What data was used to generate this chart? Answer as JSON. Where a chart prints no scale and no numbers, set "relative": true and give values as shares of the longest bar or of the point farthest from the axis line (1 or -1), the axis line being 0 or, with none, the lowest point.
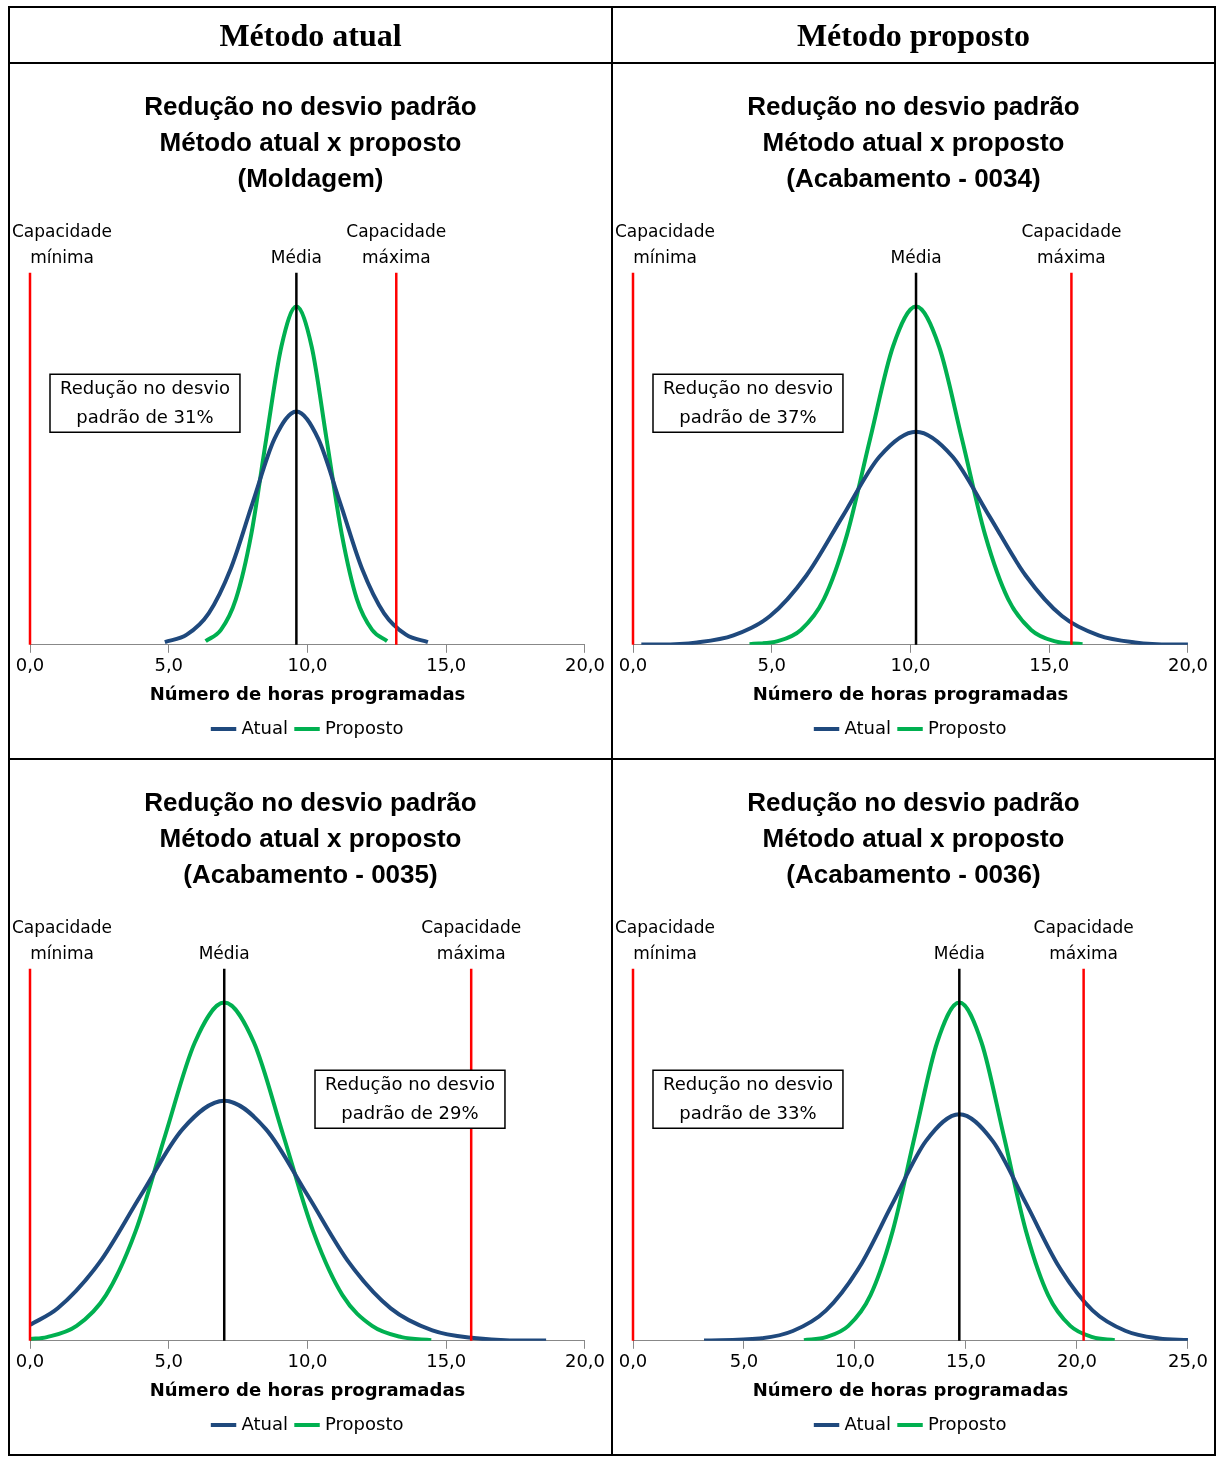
{
  "chart_data": [
    {
      "type": "other",
      "title": "Método atual"
    },
    {
      "type": "other",
      "title": "Método proposto"
    },
    {
      "type": "line",
      "title": "Redução no desvio padrão Método atual x proposto",
      "subtitle": "(Moldagem)",
      "xlabel": "Número de horas programadas",
      "relative": true,
      "legend": "bottom",
      "xlim": [
        0,
        20
      ],
      "xticks": [
        {
          "value": 0,
          "label": "0,0"
        },
        {
          "value": 5,
          "label": "5,0"
        },
        {
          "value": 10,
          "label": "10,0"
        },
        {
          "value": 15,
          "label": "15,0"
        },
        {
          "value": 20,
          "label": "20,0"
        }
      ],
      "series": [
        {
          "name": "Atual",
          "color": "#1f497d",
          "x": [
            4.86,
            5.65,
            6.44,
            7.23,
            8.02,
            8.81,
            9.6,
            10.39,
            11.18,
            11.97,
            12.76,
            13.55,
            14.34
          ],
          "values": [
            0.008,
            0.03,
            0.093,
            0.224,
            0.419,
            0.609,
            0.69,
            0.609,
            0.419,
            0.224,
            0.093,
            0.03,
            0.008
          ]
        },
        {
          "name": "Proposto",
          "color": "#00b050",
          "x": [
            6.33,
            6.88,
            7.42,
            7.97,
            8.51,
            9.06,
            9.6,
            10.15,
            10.69,
            11.24,
            11.78,
            12.33,
            12.87
          ],
          "values": [
            0.011,
            0.044,
            0.135,
            0.325,
            0.607,
            0.882,
            1,
            0.882,
            0.607,
            0.325,
            0.135,
            0.044,
            0.011
          ]
        }
      ],
      "ref_lines": [
        {
          "axis": "x",
          "value": 0,
          "label": "Capacidade mínima",
          "color": "#ff0000"
        },
        {
          "axis": "x",
          "value": 13.2,
          "label": "Capacidade máxima",
          "color": "#ff0000"
        },
        {
          "axis": "x",
          "value": 9.6,
          "label": "Média",
          "color": "#000000"
        }
      ],
      "annotations": [
        "Redução no desvio padrão de 31%"
      ]
    },
    {
      "type": "line",
      "title": "Redução no desvio padrão Método atual x proposto",
      "subtitle": "(Acabamento - 0034)",
      "xlabel": "Número de horas programadas",
      "relative": true,
      "legend": "bottom",
      "xlim": [
        0,
        20
      ],
      "xticks": [
        {
          "value": 0,
          "label": "0,0"
        },
        {
          "value": 5,
          "label": "5,0"
        },
        {
          "value": 10,
          "label": "10,0"
        },
        {
          "value": 15,
          "label": "15,0"
        },
        {
          "value": 20,
          "label": "20,0"
        }
      ],
      "series": [
        {
          "name": "Atual",
          "color": "#1f497d",
          "x": [
            0.3,
            0.99,
            2.31,
            3.62,
            4.94,
            6.25,
            7.57,
            8.88,
            10.2,
            11.52,
            12.83,
            14.15,
            15.46,
            16.78,
            18.09,
            19.41,
            20
          ],
          "values": [
            0.001,
            0.001,
            0.007,
            0.028,
            0.085,
            0.205,
            0.382,
            0.556,
            0.63,
            0.556,
            0.382,
            0.205,
            0.085,
            0.028,
            0.007,
            0.001,
            0.001
          ]
        },
        {
          "name": "Proposto",
          "color": "#00b050",
          "x": [
            4.2,
            5.22,
            6.05,
            6.88,
            7.71,
            8.54,
            9.37,
            10.2,
            11.03,
            11.86,
            12.69,
            13.52,
            14.35,
            15.18,
            16.2
          ],
          "values": [
            0.002,
            0.011,
            0.044,
            0.135,
            0.325,
            0.607,
            0.882,
            1,
            0.882,
            0.607,
            0.325,
            0.135,
            0.044,
            0.011,
            0.002
          ]
        }
      ],
      "ref_lines": [
        {
          "axis": "x",
          "value": 0,
          "label": "Capacidade mínima",
          "color": "#ff0000"
        },
        {
          "axis": "x",
          "value": 15.8,
          "label": "Capacidade máxima",
          "color": "#ff0000"
        },
        {
          "axis": "x",
          "value": 10.2,
          "label": "Média",
          "color": "#000000"
        }
      ],
      "annotations": [
        "Redução no desvio padrão de 37%"
      ]
    },
    {
      "type": "line",
      "title": "Redução no desvio padrão Método atual x proposto",
      "subtitle": "(Acabamento - 0035)",
      "xlabel": "Número de horas programadas",
      "relative": true,
      "legend": "bottom",
      "xlim": [
        0,
        20
      ],
      "xticks": [
        {
          "value": 0,
          "label": "0,0"
        },
        {
          "value": 5,
          "label": "5,0"
        },
        {
          "value": 10,
          "label": "10,0"
        },
        {
          "value": 15,
          "label": "15,0"
        },
        {
          "value": 20,
          "label": "20,0"
        }
      ],
      "series": [
        {
          "name": "Atual",
          "color": "#1f497d",
          "x": [
            0,
            1,
            2.5,
            4,
            5.5,
            7,
            8.5,
            10,
            11.5,
            13,
            14.5,
            16,
            17.5,
            18.6
          ],
          "values": [
            0.047,
            0.096,
            0.231,
            0.431,
            0.626,
            0.71,
            0.626,
            0.431,
            0.231,
            0.096,
            0.031,
            0.008,
            0.001,
            0.001
          ]
        },
        {
          "name": "Proposto",
          "color": "#00b050",
          "x": [
            0,
            0.61,
            1.68,
            2.74,
            3.81,
            4.87,
            5.94,
            7,
            8.07,
            9.13,
            10.2,
            11.26,
            12.33,
            13.39,
            14.46
          ],
          "values": [
            0.005,
            0.011,
            0.044,
            0.135,
            0.325,
            0.607,
            0.882,
            1,
            0.882,
            0.607,
            0.325,
            0.135,
            0.044,
            0.011,
            0.002
          ]
        }
      ],
      "ref_lines": [
        {
          "axis": "x",
          "value": 0,
          "label": "Capacidade mínima",
          "color": "#ff0000"
        },
        {
          "axis": "x",
          "value": 15.9,
          "label": "Capacidade máxima",
          "color": "#ff0000"
        },
        {
          "axis": "x",
          "value": 7,
          "label": "Média",
          "color": "#000000"
        }
      ],
      "annotations": [
        "Redução no desvio padrão de 29%"
      ]
    },
    {
      "type": "line",
      "title": "Redução no desvio padrão Método atual x proposto",
      "subtitle": "(Acabamento - 0036)",
      "xlabel": "Número de horas programadas",
      "relative": true,
      "legend": "bottom",
      "xlim": [
        0,
        25
      ],
      "xticks": [
        {
          "value": 0,
          "label": "0,0"
        },
        {
          "value": 5,
          "label": "5,0"
        },
        {
          "value": 10,
          "label": "10,0"
        },
        {
          "value": 15,
          "label": "15,0"
        },
        {
          "value": 20,
          "label": "20,0"
        },
        {
          "value": 25,
          "label": "25,0"
        }
      ],
      "series": [
        {
          "name": "Atual",
          "color": "#1f497d",
          "x": [
            3.2,
            5.7,
            7.2,
            8.7,
            10.2,
            11.7,
            13.2,
            14.7,
            16.2,
            17.7,
            19.2,
            20.7,
            22.2,
            23.7,
            25
          ],
          "values": [
            0.001,
            0.007,
            0.029,
            0.09,
            0.218,
            0.407,
            0.591,
            0.67,
            0.591,
            0.407,
            0.218,
            0.09,
            0.029,
            0.007,
            0.002
          ]
        },
        {
          "name": "Proposto",
          "color": "#00b050",
          "x": [
            7.7,
            8.7,
            9.7,
            10.7,
            11.7,
            12.7,
            13.7,
            14.7,
            15.7,
            16.7,
            17.7,
            18.7,
            19.7,
            20.7,
            21.7
          ],
          "values": [
            0.002,
            0.011,
            0.044,
            0.135,
            0.325,
            0.607,
            0.882,
            1,
            0.882,
            0.607,
            0.325,
            0.135,
            0.044,
            0.011,
            0.002
          ]
        }
      ],
      "ref_lines": [
        {
          "axis": "x",
          "value": 0,
          "label": "Capacidade mínima",
          "color": "#ff0000"
        },
        {
          "axis": "x",
          "value": 20.3,
          "label": "Capacidade máxima",
          "color": "#ff0000"
        },
        {
          "axis": "x",
          "value": 14.7,
          "label": "Média",
          "color": "#000000"
        }
      ],
      "annotations": [
        "Redução no desvio padrão de 33%"
      ]
    }
  ]
}
